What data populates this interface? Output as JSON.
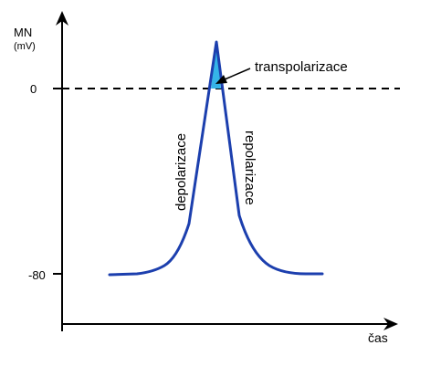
{
  "y_axis": {
    "title": "MN",
    "unit": "(mV)"
  },
  "x_axis": {
    "title": "čas"
  },
  "ticks": {
    "zero": "0",
    "rest": "-80"
  },
  "labels": {
    "depolarization": "depolarizace",
    "repolarization": "repolarizace",
    "transpolarization": "transpolarizace"
  },
  "colors": {
    "curve": "#1c3fae",
    "overshoot_fill": "#35b4e8",
    "axis": "#000000"
  }
}
